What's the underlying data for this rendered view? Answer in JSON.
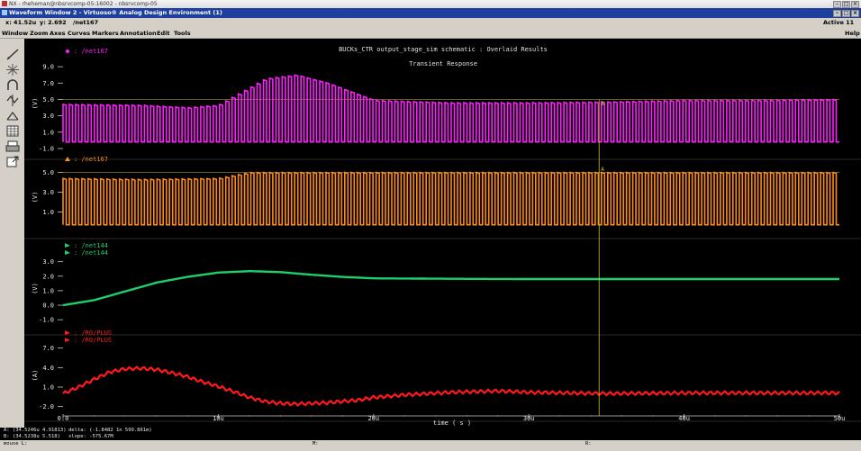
{
  "window": {
    "outer_title": "NX - rheheman@nbsrvcomp-05:16002 - nbsrvcomp-05",
    "inner_title": "Waveform Window 2 - Virtuoso® Analog Design Environment (1)",
    "min_glyph": "–",
    "max_glyph": "□",
    "close_glyph": "×"
  },
  "infobar": {
    "x": "x: 41.52u",
    "y": "y: 2.692",
    "trace": "/net167",
    "active": "Active  11"
  },
  "menu": [
    "Window",
    "Zoom",
    "Axes",
    "Curves",
    "Markers",
    "Annotation",
    "Edit",
    "Tools"
  ],
  "help": "Help",
  "toolbar_icons": [
    "pencil-icon",
    "crosshair-icon",
    "magnet-icon",
    "zoom-icon",
    "delta-icon",
    "table-icon",
    "print-icon",
    "export-icon"
  ],
  "plot": {
    "title": "BUCKs_CTR output_stage_sim schematic : Overlaid Results",
    "subtitle": "Transient Response",
    "xlabel": "time ( s )",
    "x_ticks": [
      "0.0",
      "10u",
      "20u",
      "30u",
      "40u",
      "50u"
    ],
    "cursor_labels": [
      "B",
      "A"
    ]
  },
  "colors": {
    "magenta": "#ff1fff",
    "orange": "#ff8c1a",
    "green": "#1ecf6a",
    "red": "#ff1a1a",
    "cursor": "#c8c030",
    "grid": "#c8c8c8"
  },
  "chart_data": [
    {
      "type": "line",
      "legend": [
        "/net167"
      ],
      "ylabel": "(V)",
      "y_ticks": [
        "9.0",
        "7.0",
        "5.0",
        "3.0",
        "1.0",
        "-1.0"
      ],
      "ylim": [
        -1.0,
        10.0
      ],
      "x": [
        0,
        5,
        8,
        10,
        13,
        15,
        17,
        20,
        25,
        30,
        35,
        40,
        45,
        50
      ],
      "series": [
        {
          "name": "/net167",
          "high": [
            4.4,
            4.3,
            4.0,
            4.3,
            7.5,
            8.0,
            7.0,
            4.9,
            4.6,
            4.6,
            4.7,
            4.9,
            4.9,
            5.0
          ],
          "low": -0.2
        }
      ]
    },
    {
      "type": "line",
      "legend": [
        "/net167"
      ],
      "ylabel": "(V)",
      "y_ticks": [
        "5.0",
        "3.0",
        "1.0"
      ],
      "ylim": [
        -0.6,
        5.6
      ],
      "x": [
        0,
        5,
        10,
        12,
        15,
        20,
        30,
        40,
        50
      ],
      "series": [
        {
          "name": "/net167",
          "high": [
            4.4,
            4.3,
            4.4,
            5.0,
            5.0,
            5.0,
            5.0,
            5.0,
            5.0
          ],
          "low": -0.3
        }
      ]
    },
    {
      "type": "line",
      "legend": [
        "/net144",
        "/net144"
      ],
      "ylabel": "(V)",
      "y_ticks": [
        "3.0",
        "2.0",
        "1.0",
        "0.0",
        "-1.0"
      ],
      "ylim": [
        -1.3,
        3.6
      ],
      "x": [
        0,
        2,
        4,
        6,
        8,
        10,
        12,
        14,
        16,
        18,
        20,
        25,
        30,
        35,
        40,
        45,
        50
      ],
      "series": [
        {
          "name": "/net144",
          "values": [
            0.0,
            0.35,
            0.95,
            1.55,
            1.95,
            2.25,
            2.35,
            2.28,
            2.1,
            1.95,
            1.85,
            1.82,
            1.8,
            1.8,
            1.8,
            1.8,
            1.8
          ]
        }
      ]
    },
    {
      "type": "line",
      "legend": [
        "/R0/PLUS",
        "/R0/PLUS"
      ],
      "ylabel": "(A)",
      "y_ticks": [
        "7.0",
        "4.0",
        "1.0",
        "-2.0"
      ],
      "ylim": [
        -2.6,
        8.2
      ],
      "x": [
        0,
        1,
        2,
        3,
        4,
        5,
        6,
        7,
        8,
        9,
        10,
        11,
        12,
        13,
        14,
        15,
        17,
        19,
        20,
        22,
        25,
        28,
        30,
        35,
        40,
        45,
        50
      ],
      "series": [
        {
          "name": "/R0/PLUS",
          "values": [
            0.0,
            1.0,
            2.2,
            3.3,
            3.8,
            3.9,
            3.7,
            3.2,
            2.6,
            1.8,
            1.1,
            0.3,
            -0.6,
            -1.2,
            -1.5,
            -1.6,
            -1.4,
            -1.0,
            -0.6,
            -0.2,
            0.2,
            0.4,
            0.2,
            0.0,
            0.1,
            0.1,
            0.1
          ]
        }
      ]
    }
  ],
  "status": {
    "a_line": "A: (34.5246u 4.91813)",
    "b_line": "B: (34.5238u 5.518)",
    "delta": "delta: (-1.8482 1n 599.861m)",
    "slope": "slope: -575.67M"
  },
  "mouse": {
    "l": "mouse L:",
    "m": "M:",
    "r": "R:"
  }
}
